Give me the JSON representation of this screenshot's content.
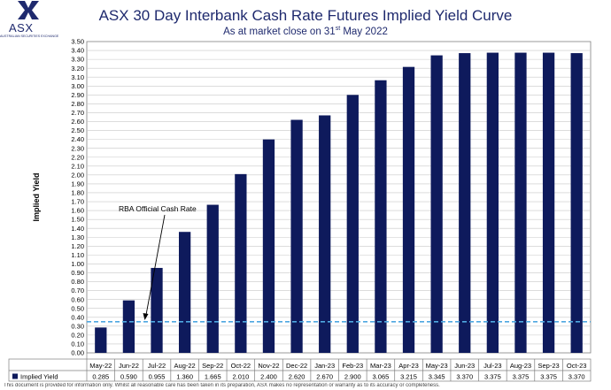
{
  "header": {
    "logo_text": "ASX",
    "logo_subtext": "AUSTRALIAN SECURITIES EXCHANGE",
    "title": "ASX 30 Day Interbank Cash Rate Futures Implied Yield Curve",
    "subtitle_prefix": "As at market close on 31",
    "subtitle_sup": "st",
    "subtitle_suffix": " May 2022"
  },
  "colors": {
    "bar": "#0e1a5c",
    "reference_line": "#4fa8e0",
    "title": "#1f2a6e",
    "grid": "#c8c8c8"
  },
  "chart_data": {
    "type": "bar",
    "ylabel": "Implied Yield",
    "ylim": [
      0,
      3.5
    ],
    "ytick_step": 0.1,
    "grid": true,
    "categories": [
      "May-22",
      "Jun-22",
      "Jul-22",
      "Aug-22",
      "Sep-22",
      "Oct-22",
      "Nov-22",
      "Dec-22",
      "Jan-23",
      "Feb-23",
      "Mar-23",
      "Apr-23",
      "May-23",
      "Jun-23",
      "Jul-23",
      "Aug-23",
      "Sep-23",
      "Oct-23"
    ],
    "series": [
      {
        "name": "Implied Yield",
        "values": [
          0.285,
          0.59,
          0.955,
          1.36,
          1.665,
          2.01,
          2.4,
          2.62,
          2.67,
          2.9,
          3.065,
          3.215,
          3.345,
          3.37,
          3.375,
          3.375,
          3.375,
          3.37
        ],
        "value_labels": [
          "0.285",
          "0.590",
          "0.955",
          "1.360",
          "1.665",
          "2.010",
          "2.400",
          "2.620",
          "2.670",
          "2.900",
          "3.065",
          "3.215",
          "3.345",
          "3.370",
          "3.375",
          "3.375",
          "3.375",
          "3.370"
        ]
      }
    ],
    "reference_line": {
      "label": "RBA Official Cash Rate",
      "value": 0.35
    }
  },
  "footnote": "This document is provided for information only. Whilst all reasonable care has been taken in its preparation, ASX makes no representation or warranty as to its accuracy or completeness."
}
